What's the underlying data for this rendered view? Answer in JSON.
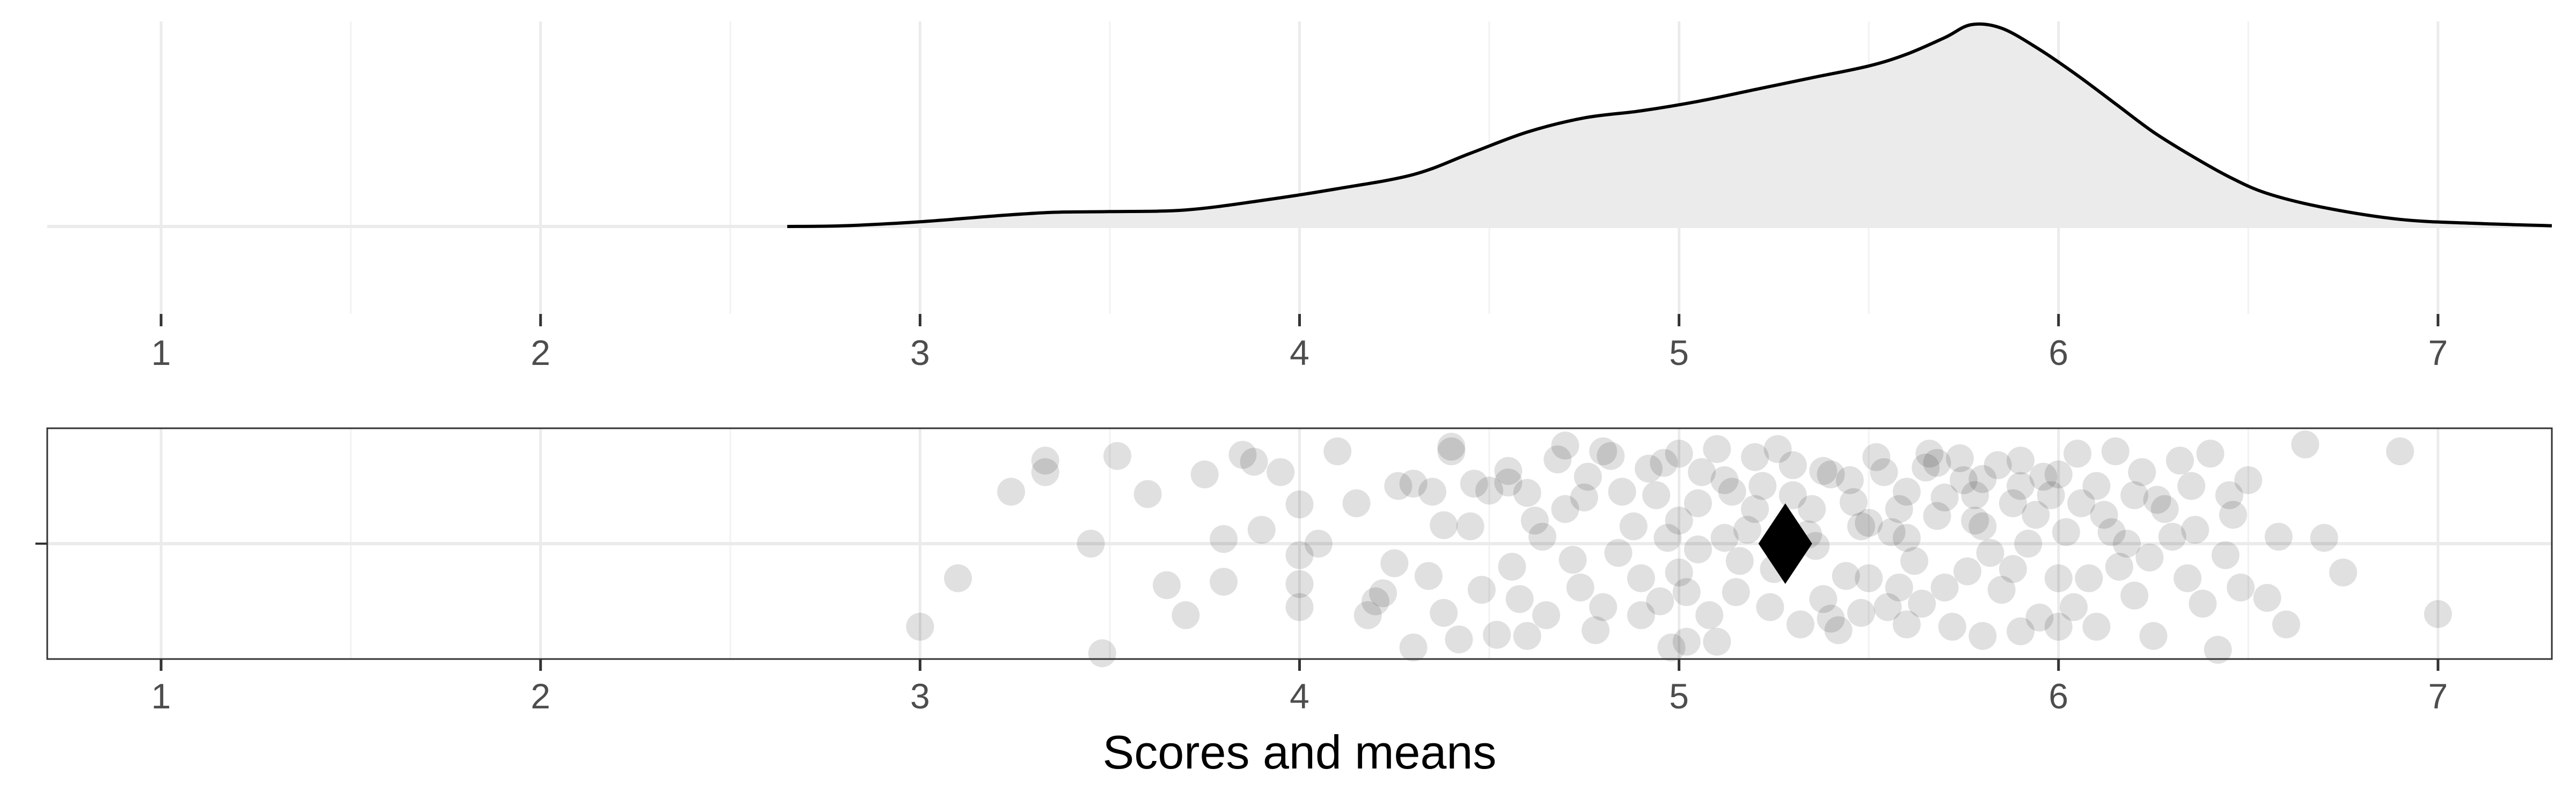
{
  "chart_data": [
    {
      "type": "area",
      "description_role": "density",
      "xlim": [
        0.7,
        7.3
      ],
      "x_ticks": [
        1,
        2,
        3,
        4,
        5,
        6,
        7
      ],
      "x_tick_labels": [
        "1",
        "2",
        "3",
        "4",
        "5",
        "6",
        "7"
      ],
      "density_curve": [
        [
          2.65,
          0.0
        ],
        [
          2.8,
          0.003
        ],
        [
          3.0,
          0.02
        ],
        [
          3.2,
          0.045
        ],
        [
          3.35,
          0.06
        ],
        [
          3.5,
          0.063
        ],
        [
          3.7,
          0.07
        ],
        [
          3.9,
          0.11
        ],
        [
          4.1,
          0.16
        ],
        [
          4.3,
          0.22
        ],
        [
          4.45,
          0.31
        ],
        [
          4.6,
          0.4
        ],
        [
          4.75,
          0.46
        ],
        [
          4.9,
          0.49
        ],
        [
          5.05,
          0.53
        ],
        [
          5.2,
          0.58
        ],
        [
          5.35,
          0.63
        ],
        [
          5.5,
          0.68
        ],
        [
          5.6,
          0.73
        ],
        [
          5.7,
          0.8
        ],
        [
          5.77,
          0.855
        ],
        [
          5.85,
          0.84
        ],
        [
          5.95,
          0.75
        ],
        [
          6.05,
          0.64
        ],
        [
          6.15,
          0.52
        ],
        [
          6.25,
          0.4
        ],
        [
          6.35,
          0.3
        ],
        [
          6.45,
          0.21
        ],
        [
          6.55,
          0.14
        ],
        [
          6.7,
          0.08
        ],
        [
          6.9,
          0.03
        ],
        [
          7.1,
          0.013
        ],
        [
          7.3,
          0.003
        ]
      ],
      "fill_color": "#ebebeb",
      "line_color": "#000000",
      "grid": true
    },
    {
      "type": "scatter",
      "description_role": "jittered points with mean",
      "xlim": [
        0.7,
        7.3
      ],
      "ylim": [
        -1,
        1
      ],
      "x_ticks": [
        1,
        2,
        3,
        4,
        5,
        6,
        7
      ],
      "x_tick_labels": [
        "1",
        "2",
        "3",
        "4",
        "5",
        "6",
        "7"
      ],
      "xlabel": "Scores and means",
      "point_color": "#cfcfcf",
      "mean_color": "#000000",
      "mean": 5.28,
      "points": [
        [
          3.0,
          -0.72
        ],
        [
          3.1,
          -0.3
        ],
        [
          3.24,
          0.45
        ],
        [
          3.33,
          0.62
        ],
        [
          3.33,
          0.72
        ],
        [
          3.45,
          0.0
        ],
        [
          3.48,
          -0.95
        ],
        [
          3.52,
          0.76
        ],
        [
          3.6,
          0.43
        ],
        [
          3.65,
          -0.36
        ],
        [
          3.7,
          -0.62
        ],
        [
          3.75,
          0.6
        ],
        [
          3.8,
          0.04
        ],
        [
          3.8,
          -0.33
        ],
        [
          3.85,
          0.77
        ],
        [
          3.88,
          0.71
        ],
        [
          3.9,
          0.12
        ],
        [
          3.95,
          0.62
        ],
        [
          4.0,
          0.34
        ],
        [
          4.0,
          -0.1
        ],
        [
          4.0,
          -0.35
        ],
        [
          4.0,
          -0.55
        ],
        [
          4.05,
          0.0
        ],
        [
          4.1,
          0.8
        ],
        [
          4.15,
          0.35
        ],
        [
          4.18,
          -0.62
        ],
        [
          4.2,
          -0.5
        ],
        [
          4.22,
          -0.43
        ],
        [
          4.25,
          -0.17
        ],
        [
          4.3,
          -0.9
        ],
        [
          4.3,
          0.52
        ],
        [
          4.35,
          0.45
        ],
        [
          4.38,
          0.16
        ],
        [
          4.4,
          0.84
        ],
        [
          4.4,
          0.8
        ],
        [
          4.45,
          0.15
        ],
        [
          4.48,
          -0.4
        ],
        [
          4.5,
          0.46
        ],
        [
          4.55,
          0.53
        ],
        [
          4.55,
          0.63
        ],
        [
          4.6,
          -0.8
        ],
        [
          4.62,
          0.2
        ],
        [
          4.65,
          -0.62
        ],
        [
          4.68,
          0.73
        ],
        [
          4.7,
          0.85
        ],
        [
          4.72,
          -0.14
        ],
        [
          4.75,
          0.4
        ],
        [
          4.78,
          -0.75
        ],
        [
          4.8,
          0.8
        ],
        [
          4.85,
          0.45
        ],
        [
          4.88,
          0.15
        ],
        [
          4.9,
          -0.3
        ],
        [
          4.92,
          0.65
        ],
        [
          4.95,
          -0.5
        ],
        [
          4.97,
          0.05
        ],
        [
          5.0,
          0.78
        ],
        [
          5.02,
          -0.85
        ],
        [
          5.05,
          0.35
        ],
        [
          5.08,
          -0.62
        ],
        [
          5.1,
          0.82
        ],
        [
          5.12,
          0.05
        ],
        [
          5.15,
          -0.42
        ],
        [
          5.2,
          0.75
        ],
        [
          5.22,
          0.5
        ],
        [
          5.25,
          -0.22
        ],
        [
          5.3,
          0.68
        ],
        [
          5.32,
          -0.7
        ],
        [
          5.35,
          0.3
        ],
        [
          5.38,
          0.63
        ],
        [
          5.4,
          -0.65
        ],
        [
          5.42,
          -0.75
        ],
        [
          5.45,
          0.55
        ],
        [
          5.48,
          0.15
        ],
        [
          5.5,
          -0.3
        ],
        [
          5.52,
          0.75
        ],
        [
          5.55,
          -0.55
        ],
        [
          5.58,
          0.3
        ],
        [
          5.6,
          0.45
        ],
        [
          5.62,
          -0.15
        ],
        [
          5.65,
          0.66
        ],
        [
          5.68,
          0.7
        ],
        [
          5.7,
          -0.38
        ],
        [
          5.72,
          -0.72
        ],
        [
          5.75,
          0.55
        ],
        [
          5.78,
          0.2
        ],
        [
          5.8,
          0.56
        ],
        [
          5.85,
          -0.4
        ],
        [
          5.88,
          0.35
        ],
        [
          5.9,
          0.72
        ],
        [
          5.92,
          0.0
        ],
        [
          5.95,
          -0.64
        ],
        [
          5.98,
          0.42
        ],
        [
          6.0,
          -0.72
        ],
        [
          6.02,
          0.1
        ],
        [
          6.05,
          0.78
        ],
        [
          6.08,
          -0.3
        ],
        [
          6.1,
          0.5
        ],
        [
          6.15,
          0.8
        ],
        [
          6.18,
          0.0
        ],
        [
          6.2,
          -0.45
        ],
        [
          6.22,
          0.62
        ],
        [
          6.25,
          -0.8
        ],
        [
          6.28,
          0.3
        ],
        [
          6.3,
          0.06
        ],
        [
          6.35,
          0.5
        ],
        [
          6.38,
          -0.52
        ],
        [
          6.4,
          0.78
        ],
        [
          6.42,
          -0.92
        ],
        [
          6.45,
          0.42
        ],
        [
          6.48,
          -0.38
        ],
        [
          6.5,
          0.55
        ],
        [
          6.55,
          -0.47
        ],
        [
          6.58,
          0.06
        ],
        [
          6.6,
          -0.7
        ],
        [
          6.65,
          0.86
        ],
        [
          6.7,
          0.05
        ],
        [
          6.75,
          -0.25
        ],
        [
          6.9,
          0.8
        ],
        [
          7.0,
          -0.61
        ],
        [
          4.42,
          -0.83
        ],
        [
          4.52,
          -0.79
        ],
        [
          4.6,
          0.44
        ],
        [
          4.82,
          0.76
        ],
        [
          4.98,
          -0.9
        ],
        [
          5.05,
          -0.05
        ],
        [
          5.18,
          0.12
        ],
        [
          5.26,
          0.82
        ],
        [
          5.44,
          -0.28
        ],
        [
          5.56,
          0.1
        ],
        [
          5.66,
          0.78
        ],
        [
          5.74,
          0.74
        ],
        [
          5.82,
          -0.08
        ],
        [
          5.9,
          -0.76
        ],
        [
          6.04,
          -0.55
        ],
        [
          6.12,
          0.25
        ],
        [
          6.24,
          -0.12
        ],
        [
          6.32,
          0.72
        ],
        [
          6.46,
          0.25
        ],
        [
          4.26,
          0.5
        ],
        [
          4.34,
          -0.28
        ],
        [
          4.46,
          0.52
        ],
        [
          4.56,
          -0.2
        ],
        [
          4.64,
          0.06
        ],
        [
          4.74,
          -0.38
        ],
        [
          4.84,
          -0.08
        ],
        [
          4.94,
          0.42
        ],
        [
          5.0,
          0.2
        ],
        [
          5.1,
          -0.85
        ],
        [
          5.14,
          0.45
        ],
        [
          5.3,
          0.42
        ],
        [
          5.36,
          -0.02
        ],
        [
          5.46,
          0.36
        ],
        [
          5.54,
          0.62
        ],
        [
          5.64,
          -0.52
        ],
        [
          5.76,
          -0.24
        ],
        [
          5.84,
          0.68
        ],
        [
          5.94,
          0.25
        ],
        [
          6.06,
          0.35
        ],
        [
          6.16,
          -0.2
        ],
        [
          6.26,
          0.38
        ],
        [
          6.34,
          -0.3
        ],
        [
          6.44,
          -0.1
        ],
        [
          4.38,
          -0.6
        ],
        [
          4.58,
          -0.48
        ],
        [
          4.76,
          0.58
        ],
        [
          4.9,
          -0.62
        ],
        [
          5.02,
          -0.42
        ],
        [
          5.12,
          0.55
        ],
        [
          5.24,
          -0.55
        ],
        [
          5.38,
          -0.48
        ],
        [
          5.5,
          0.18
        ],
        [
          5.6,
          -0.7
        ],
        [
          5.7,
          0.4
        ],
        [
          5.8,
          -0.8
        ],
        [
          5.96,
          0.58
        ],
        [
          6.1,
          -0.72
        ],
        [
          6.2,
          0.42
        ],
        [
          6.36,
          0.12
        ],
        [
          4.96,
          0.7
        ],
        [
          5.06,
          0.62
        ],
        [
          5.16,
          -0.15
        ],
        [
          5.34,
          0.08
        ],
        [
          5.48,
          -0.6
        ],
        [
          5.58,
          -0.38
        ],
        [
          5.68,
          0.24
        ],
        [
          5.78,
          0.42
        ],
        [
          5.88,
          -0.22
        ],
        [
          6.0,
          -0.3
        ],
        [
          6.14,
          0.1
        ],
        [
          5.2,
          0.3
        ],
        [
          5.4,
          0.6
        ],
        [
          5.6,
          0.05
        ],
        [
          5.8,
          0.15
        ],
        [
          5.0,
          -0.25
        ],
        [
          4.7,
          0.3
        ],
        [
          4.8,
          -0.55
        ],
        [
          5.9,
          0.5
        ],
        [
          6.0,
          0.6
        ]
      ]
    }
  ]
}
